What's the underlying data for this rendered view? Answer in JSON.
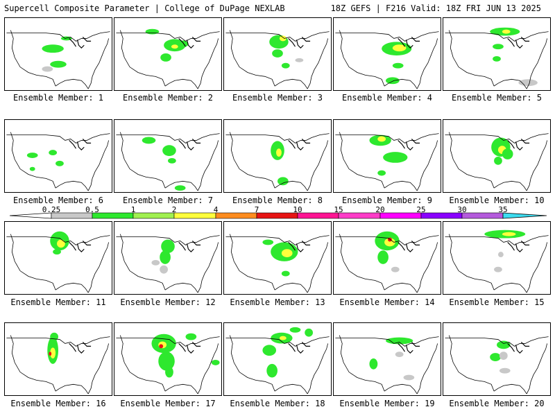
{
  "header": {
    "title": "Supercell Composite Parameter | College of DuPage NEXLAB",
    "run_info": "18Z GEFS | F216 Valid: 18Z FRI JUN 13 2025"
  },
  "legend": {
    "tick_labels": [
      "0.25",
      "0.5",
      "1",
      "2",
      "4",
      "7",
      "10",
      "15",
      "20",
      "25",
      "30",
      "35"
    ],
    "colors": [
      "#c8c8c8",
      "#2ee82e",
      "#a0f050",
      "#ffff3c",
      "#ff8c1e",
      "#e61414",
      "#ff1493",
      "#ff3cc8",
      "#ff00ff",
      "#8a00ff",
      "#b45adc",
      "#3cdcf0"
    ]
  },
  "panels": [
    {
      "label": "Ensemble Member: 1"
    },
    {
      "label": "Ensemble Member: 2"
    },
    {
      "label": "Ensemble Member: 3"
    },
    {
      "label": "Ensemble Member: 4"
    },
    {
      "label": "Ensemble Member: 5"
    },
    {
      "label": "Ensemble Member: 6"
    },
    {
      "label": "Ensemble Member: 7"
    },
    {
      "label": "Ensemble Member: 8"
    },
    {
      "label": "Ensemble Member: 9"
    },
    {
      "label": "Ensemble Member: 10"
    },
    {
      "label": "Ensemble Member: 11"
    },
    {
      "label": "Ensemble Member: 12"
    },
    {
      "label": "Ensemble Member: 13"
    },
    {
      "label": "Ensemble Member: 14"
    },
    {
      "label": "Ensemble Member: 15"
    },
    {
      "label": "Ensemble Member: 16"
    },
    {
      "label": "Ensemble Member: 17"
    },
    {
      "label": "Ensemble Member: 18"
    },
    {
      "label": "Ensemble Member: 19"
    },
    {
      "label": "Ensemble Member: 20"
    }
  ]
}
